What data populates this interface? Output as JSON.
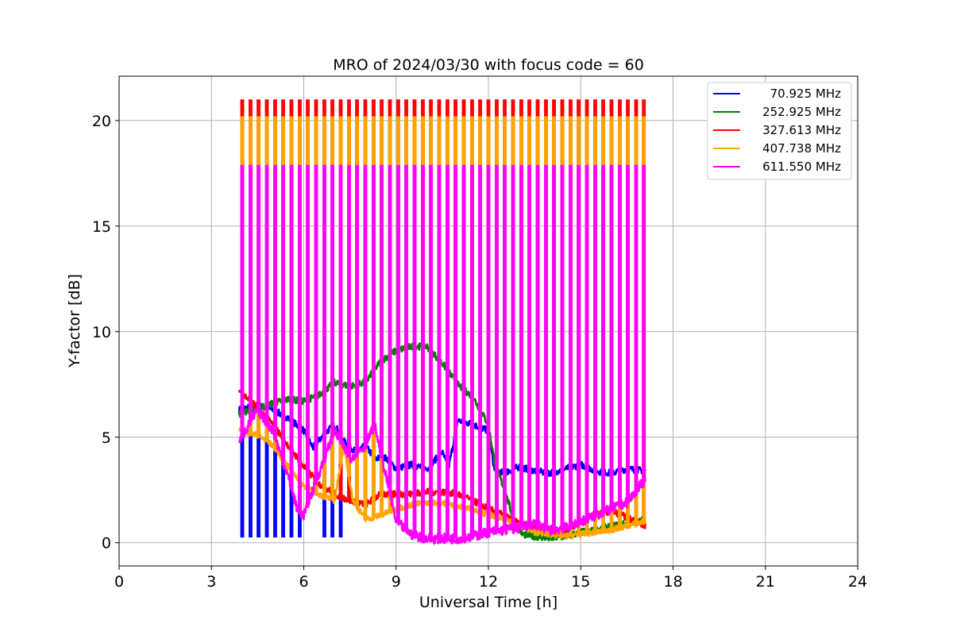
{
  "chart_data": {
    "type": "line",
    "title": "MRO of 2024/03/30 with focus code = 60",
    "xlabel": "Universal Time [h]",
    "ylabel": "Y-factor [dB]",
    "xlim": [
      0,
      24
    ],
    "ylim": [
      -1.1,
      22.1
    ],
    "xticks": [
      0,
      3,
      6,
      9,
      12,
      15,
      18,
      21,
      24
    ],
    "yticks": [
      0,
      5,
      10,
      15,
      20
    ],
    "grid": true,
    "legend_position": "top-right",
    "spike_times": [
      4.0,
      4.27,
      4.53,
      4.8,
      5.07,
      5.33,
      5.6,
      5.87,
      6.13,
      6.4,
      6.67,
      6.93,
      7.2,
      7.47,
      7.73,
      8.0,
      8.27,
      8.53,
      8.8,
      9.07,
      9.33,
      9.6,
      9.87,
      10.13,
      10.4,
      10.67,
      10.93,
      11.2,
      11.47,
      11.73,
      12.0,
      12.27,
      12.53,
      12.8,
      13.07,
      13.33,
      13.6,
      13.87,
      14.13,
      14.4,
      14.67,
      14.93,
      15.2,
      15.47,
      15.73,
      16.0,
      16.27,
      16.53,
      16.8,
      17.05
    ],
    "series": [
      {
        "name": "70.925 MHz",
        "color": "#0000ff",
        "spike_peak": 5.0,
        "spike_end": 12.0,
        "baseline": [
          [
            3.9,
            6.3
          ],
          [
            4.5,
            6.5
          ],
          [
            5.0,
            6.3
          ],
          [
            5.5,
            5.9
          ],
          [
            6.0,
            5.3
          ],
          [
            6.3,
            4.5
          ],
          [
            6.7,
            5.2
          ],
          [
            7.0,
            5.6
          ],
          [
            7.3,
            4.8
          ],
          [
            7.7,
            4.3
          ],
          [
            8.0,
            4.6
          ],
          [
            8.3,
            4.0
          ],
          [
            8.7,
            4.0
          ],
          [
            9.0,
            3.5
          ],
          [
            9.5,
            3.7
          ],
          [
            10.0,
            3.5
          ],
          [
            10.5,
            4.3
          ],
          [
            10.7,
            3.5
          ],
          [
            11.0,
            5.8
          ],
          [
            11.5,
            5.6
          ],
          [
            12.0,
            5.3
          ],
          [
            12.2,
            3.4
          ],
          [
            12.5,
            3.3
          ],
          [
            13.0,
            3.6
          ],
          [
            13.5,
            3.4
          ],
          [
            14.0,
            3.3
          ],
          [
            14.5,
            3.5
          ],
          [
            15.0,
            3.7
          ],
          [
            15.5,
            3.4
          ],
          [
            16.0,
            3.3
          ],
          [
            16.5,
            3.5
          ],
          [
            17.1,
            3.4
          ]
        ]
      },
      {
        "name": "252.925 MHz",
        "color": "#008000",
        "baseline": [
          [
            3.9,
            6.1
          ],
          [
            4.5,
            6.4
          ],
          [
            5.0,
            6.6
          ],
          [
            5.5,
            6.8
          ],
          [
            6.0,
            6.7
          ],
          [
            6.5,
            7.0
          ],
          [
            7.0,
            7.6
          ],
          [
            7.5,
            7.4
          ],
          [
            8.0,
            7.6
          ],
          [
            8.5,
            8.6
          ],
          [
            9.0,
            9.1
          ],
          [
            9.5,
            9.3
          ],
          [
            10.0,
            9.3
          ],
          [
            10.5,
            8.5
          ],
          [
            11.0,
            7.5
          ],
          [
            11.5,
            6.9
          ],
          [
            12.0,
            5.6
          ],
          [
            12.2,
            3.8
          ],
          [
            12.5,
            2.6
          ],
          [
            12.8,
            1.2
          ],
          [
            13.1,
            0.4
          ],
          [
            13.5,
            0.3
          ],
          [
            14.0,
            0.2
          ],
          [
            14.5,
            0.3
          ],
          [
            15.0,
            0.5
          ],
          [
            15.5,
            0.6
          ],
          [
            16.0,
            0.8
          ],
          [
            16.5,
            0.9
          ],
          [
            17.1,
            1.1
          ]
        ]
      },
      {
        "name": "327.613 MHz",
        "color": "#ff0000",
        "spike_peak": 21.0,
        "baseline": [
          [
            3.9,
            7.2
          ],
          [
            4.5,
            6.4
          ],
          [
            5.0,
            5.6
          ],
          [
            5.5,
            4.6
          ],
          [
            6.0,
            3.6
          ],
          [
            6.5,
            2.8
          ],
          [
            7.0,
            2.3
          ],
          [
            7.5,
            2.0
          ],
          [
            8.0,
            1.8
          ],
          [
            8.5,
            2.3
          ],
          [
            9.0,
            2.3
          ],
          [
            9.5,
            2.3
          ],
          [
            10.0,
            2.4
          ],
          [
            10.5,
            2.4
          ],
          [
            11.0,
            2.3
          ],
          [
            11.5,
            2.0
          ],
          [
            12.0,
            1.6
          ],
          [
            12.5,
            1.3
          ],
          [
            13.0,
            0.9
          ],
          [
            13.5,
            0.7
          ],
          [
            14.0,
            0.5
          ],
          [
            14.5,
            0.6
          ],
          [
            15.0,
            1.0
          ],
          [
            15.5,
            1.4
          ],
          [
            16.0,
            1.5
          ],
          [
            16.5,
            1.2
          ],
          [
            17.1,
            0.8
          ]
        ]
      },
      {
        "name": "407.738 MHz",
        "color": "#ffa500",
        "spike_peak": 20.2,
        "baseline": [
          [
            3.9,
            5.3
          ],
          [
            4.5,
            5.1
          ],
          [
            5.0,
            4.6
          ],
          [
            5.5,
            3.6
          ],
          [
            6.0,
            2.7
          ],
          [
            6.5,
            2.3
          ],
          [
            7.0,
            2.0
          ],
          [
            7.3,
            4.6
          ],
          [
            7.6,
            2.0
          ],
          [
            8.0,
            1.1
          ],
          [
            8.5,
            1.3
          ],
          [
            9.0,
            1.6
          ],
          [
            9.5,
            1.8
          ],
          [
            10.0,
            1.9
          ],
          [
            10.5,
            1.9
          ],
          [
            11.0,
            1.7
          ],
          [
            11.5,
            1.6
          ],
          [
            12.0,
            1.3
          ],
          [
            12.5,
            1.1
          ],
          [
            13.0,
            0.8
          ],
          [
            13.5,
            0.5
          ],
          [
            14.0,
            0.4
          ],
          [
            14.5,
            0.3
          ],
          [
            15.0,
            0.4
          ],
          [
            15.5,
            0.5
          ],
          [
            16.0,
            0.6
          ],
          [
            16.5,
            0.8
          ],
          [
            17.1,
            1.0
          ]
        ]
      },
      {
        "name": "611.550 MHz",
        "color": "#ff00ff",
        "spike_peak": 17.9,
        "baseline": [
          [
            3.9,
            4.8
          ],
          [
            4.5,
            6.3
          ],
          [
            5.0,
            5.3
          ],
          [
            5.5,
            3.1
          ],
          [
            5.8,
            1.5
          ],
          [
            6.0,
            1.3
          ],
          [
            6.5,
            3.3
          ],
          [
            7.0,
            5.3
          ],
          [
            7.5,
            4.0
          ],
          [
            8.0,
            4.6
          ],
          [
            8.3,
            5.6
          ],
          [
            8.6,
            3.6
          ],
          [
            9.0,
            1.0
          ],
          [
            9.5,
            0.4
          ],
          [
            10.0,
            0.2
          ],
          [
            10.5,
            0.2
          ],
          [
            11.0,
            0.2
          ],
          [
            11.5,
            0.3
          ],
          [
            12.0,
            0.5
          ],
          [
            12.5,
            0.6
          ],
          [
            13.0,
            0.7
          ],
          [
            13.5,
            0.9
          ],
          [
            14.0,
            0.6
          ],
          [
            14.5,
            0.7
          ],
          [
            15.0,
            1.0
          ],
          [
            15.5,
            1.3
          ],
          [
            16.0,
            1.6
          ],
          [
            16.5,
            1.9
          ],
          [
            17.1,
            3.0
          ]
        ]
      }
    ]
  }
}
